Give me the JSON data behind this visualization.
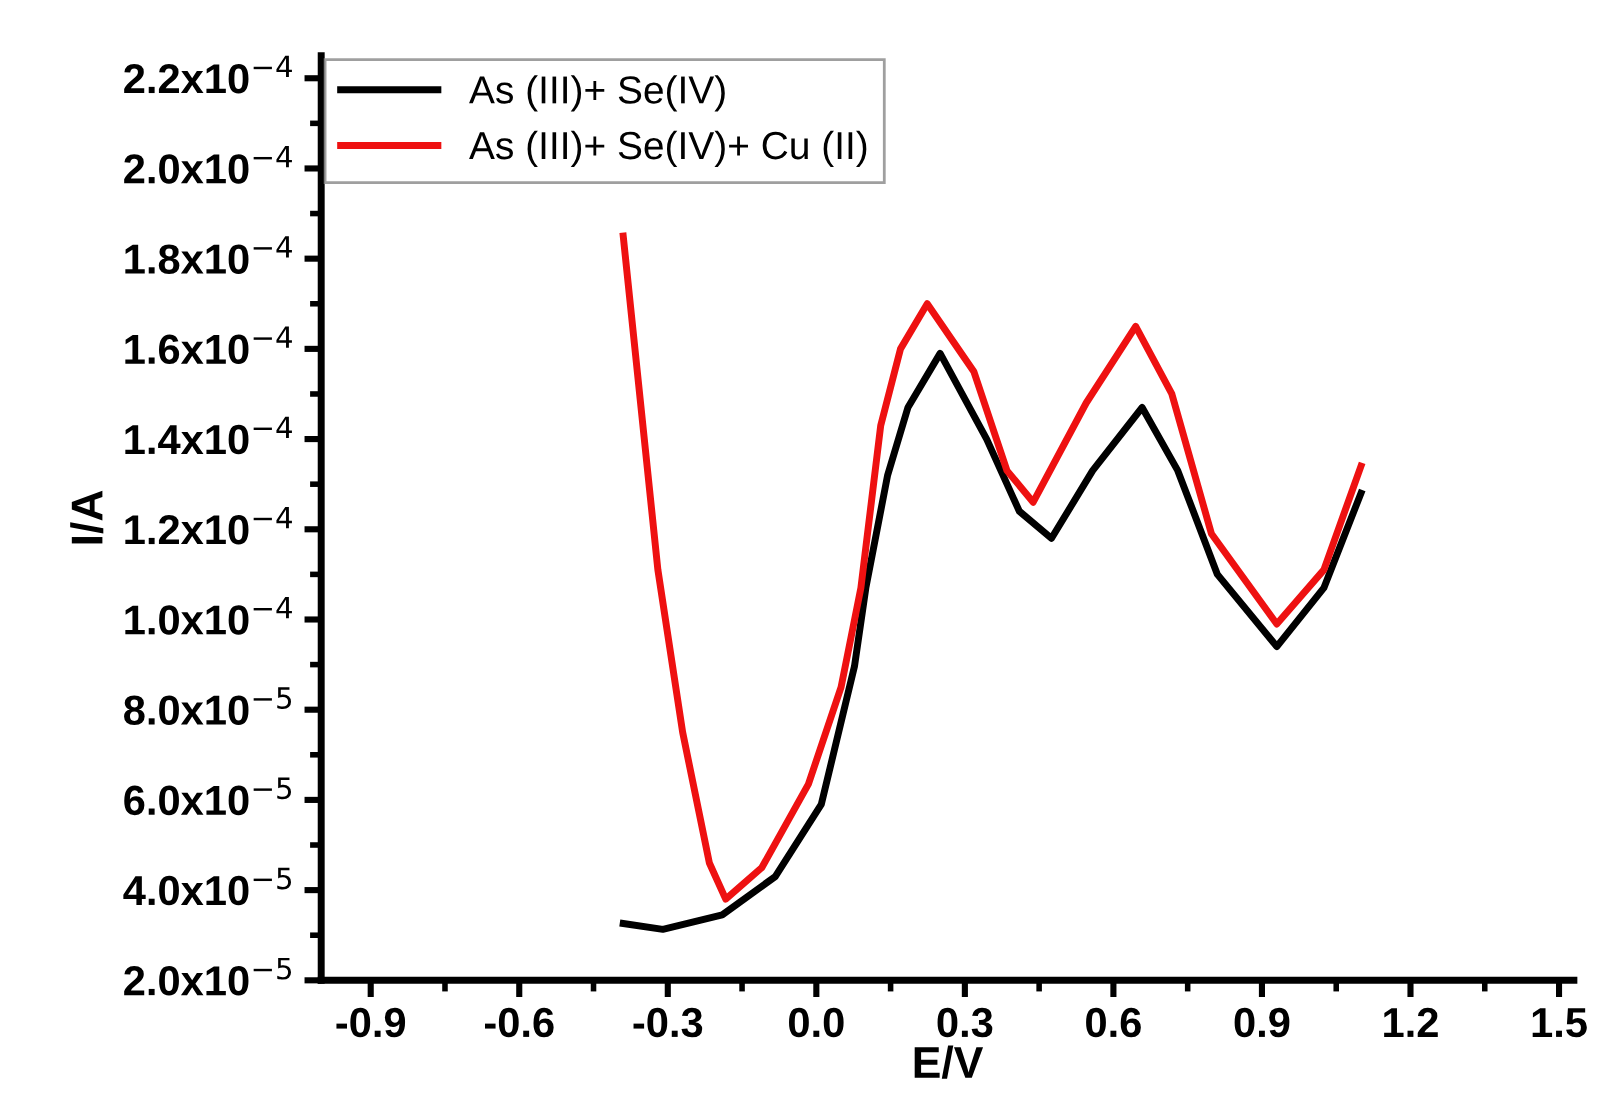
{
  "chart_data": {
    "type": "line",
    "xlabel": "E/V",
    "ylabel": "I/A",
    "series": [
      {
        "name": "As (III)+ Se(IV)",
        "color": "#000000",
        "x": [
          -0.39,
          -0.31,
          -0.19,
          -0.083,
          0.01,
          0.077,
          0.1,
          0.144,
          0.185,
          0.25,
          0.344,
          0.41,
          0.475,
          0.558,
          0.658,
          0.73,
          0.81,
          0.93,
          1.025,
          1.1
        ],
        "values": [
          3.26e-05,
          3.13e-05,
          3.45e-05,
          4.3e-05,
          5.9e-05,
          8.96e-05,
          0.000107,
          0.000132,
          0.000147,
          0.000159,
          0.00014,
          0.000124,
          0.000118,
          0.000133,
          0.000147,
          0.000133,
          0.00011,
          9.4e-05,
          0.000107,
          0.000128
        ]
      },
      {
        "name": "As (III)+ Se(IV)+ Cu (II)",
        "color": "#ee1111",
        "x": [
          -0.39,
          -0.32,
          -0.27,
          -0.216,
          -0.183,
          -0.11,
          -0.016,
          0.05,
          0.09,
          0.13,
          0.17,
          0.224,
          0.318,
          0.385,
          0.438,
          0.545,
          0.645,
          0.718,
          0.798,
          0.93,
          1.025,
          1.1
        ],
        "values": [
          0.000185,
          0.000111,
          7.5e-05,
          4.6e-05,
          3.8e-05,
          4.5e-05,
          6.35e-05,
          8.5e-05,
          0.000107,
          0.000143,
          0.00016,
          0.00017,
          0.000155,
          0.000133,
          0.000126,
          0.000148,
          0.000165,
          0.00015,
          0.000119,
          9.9e-05,
          0.000111,
          0.000134
        ]
      }
    ],
    "xlim": [
      -1.0,
      1.53
    ],
    "xticks": [
      -0.9,
      -0.6,
      -0.3,
      {
        "value": 0.0,
        "label": "0.0"
      },
      0.3,
      0.6,
      0.9,
      1.2,
      1.5
    ],
    "ylim": [
      2e-05,
      0.000225
    ],
    "yticks": [
      {
        "value": 2e-05,
        "label": "2.0x10$^{−5}$"
      },
      {
        "value": 4e-05,
        "label": "4.0x10$^{−5}$"
      },
      {
        "value": 6e-05,
        "label": "6.0x10$^{−5}$"
      },
      {
        "value": 8e-05,
        "label": "8.0x10$^{−5}$"
      },
      {
        "value": 0.0001,
        "label": "1.0x10$^{−4}$"
      },
      {
        "value": 0.00012,
        "label": "1.2x10$^{−4}$"
      },
      {
        "value": 0.00014,
        "label": "1.4x10$^{−4}$"
      },
      {
        "value": 0.00016,
        "label": "1.6x10$^{−4}$"
      },
      {
        "value": 0.00018,
        "label": "1.8x10$^{−4}$"
      },
      {
        "value": 0.0002,
        "label": "2.0x10$^{−4}$"
      },
      {
        "value": 0.00022,
        "label": "2.2x10$^{−4}$"
      }
    ],
    "legend": "top left",
    "grid": false,
    "marker": "none",
    "line_style": "solid"
  }
}
